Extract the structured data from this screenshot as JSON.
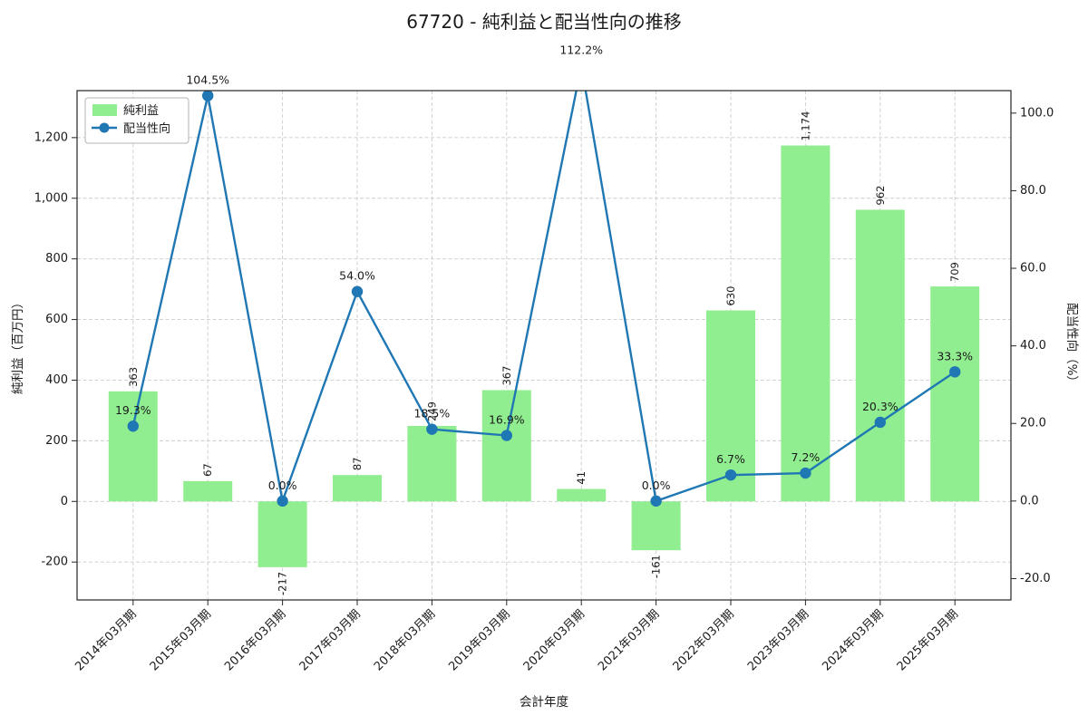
{
  "colors": {
    "bar": "#90ee90",
    "line": "#1f77b4",
    "grid": "#cccccc",
    "spine": "#262626",
    "text": "#1a1a1a",
    "legend_border": "#b3b3b3"
  },
  "chart_data": {
    "type": "bar",
    "title": "67720 - 純利益と配当性向の推移",
    "xlabel": "会計年度",
    "ylabel_left": "純利益（百万円）",
    "ylabel_right": "配当性向（%）",
    "categories": [
      "2014年03月期",
      "2015年03月期",
      "2016年03月期",
      "2017年03月期",
      "2018年03月期",
      "2019年03月期",
      "2020年03月期",
      "2021年03月期",
      "2022年03月期",
      "2023年03月期",
      "2024年03月期",
      "2025年03月期"
    ],
    "series": [
      {
        "name": "純利益",
        "type": "bar",
        "axis": "left",
        "values": [
          363,
          67,
          -217,
          87,
          249,
          367,
          41,
          -161,
          630,
          1174,
          962,
          709
        ],
        "labels": [
          "363",
          "67",
          "-217",
          "87",
          "249",
          "367",
          "41",
          "-161",
          "630",
          "1,174",
          "962",
          "709"
        ]
      },
      {
        "name": "配当性向",
        "type": "line",
        "axis": "right",
        "values": [
          19.3,
          104.5,
          0.0,
          54.0,
          18.5,
          16.9,
          112.2,
          0.0,
          6.7,
          7.2,
          20.3,
          33.3
        ],
        "labels": [
          "19.3%",
          "104.5%",
          "0.0%",
          "54.0%",
          "18.5%",
          "16.9%",
          "112.2%",
          "0.0%",
          "6.7%",
          "7.2%",
          "20.3%",
          "33.3%"
        ]
      }
    ],
    "ylim_left": [
      -325,
      1355
    ],
    "ylim_right": [
      -25.5,
      105.8
    ],
    "yticks_left": {
      "values": [
        -200,
        0,
        200,
        400,
        600,
        800,
        1000,
        1200
      ],
      "labels": [
        "-200",
        "0",
        "200",
        "400",
        "600",
        "800",
        "1,000",
        "1,200"
      ]
    },
    "yticks_right": {
      "values": [
        -20,
        0,
        20,
        40,
        60,
        80,
        100
      ],
      "labels": [
        "-20.0",
        "0.0",
        "20.0",
        "40.0",
        "60.0",
        "80.0",
        "100.0"
      ]
    },
    "grid": true,
    "legend_position": "upper left"
  }
}
